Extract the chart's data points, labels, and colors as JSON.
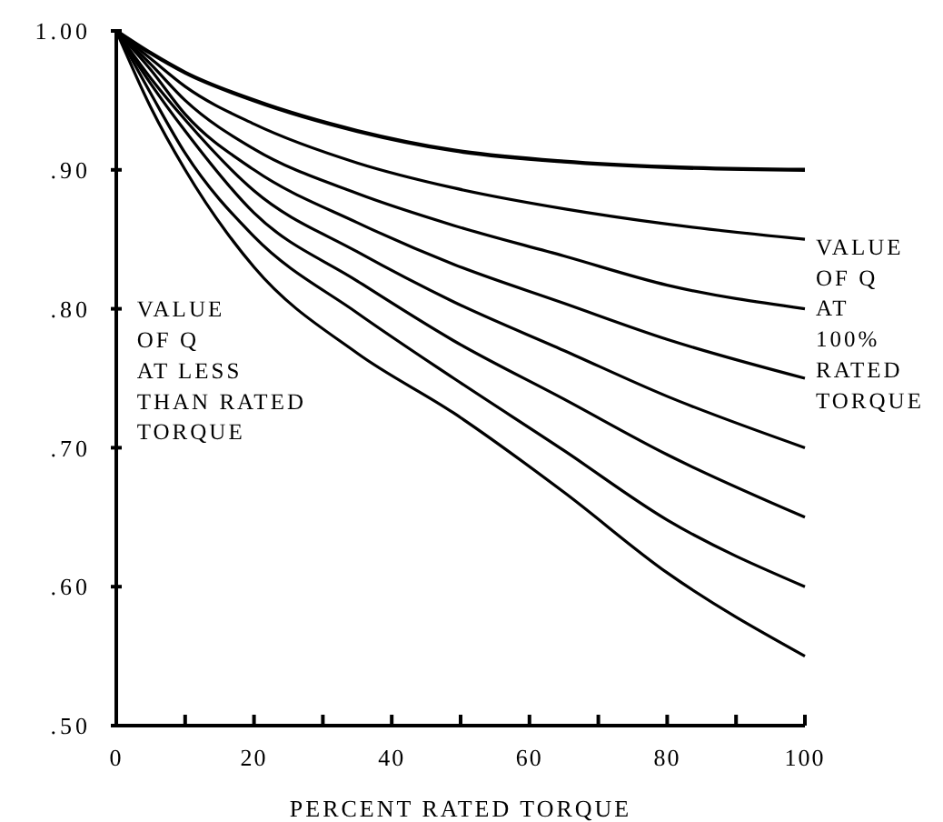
{
  "chart_data": {
    "type": "line",
    "xlabel": "PERCENT RATED TORQUE",
    "x": [
      0,
      5,
      10,
      20,
      35,
      49,
      65,
      80,
      100
    ],
    "series": [
      {
        "color": "#000000",
        "values": [
          1.0,
          0.984,
          0.97,
          0.95,
          0.928,
          0.914,
          0.906,
          0.902,
          0.9
        ]
      },
      {
        "color": "#000000",
        "values": [
          1.0,
          0.98,
          0.96,
          0.933,
          0.905,
          0.887,
          0.872,
          0.861,
          0.85
        ]
      },
      {
        "color": "#000000",
        "values": [
          1.0,
          0.976,
          0.95,
          0.915,
          0.883,
          0.86,
          0.838,
          0.817,
          0.8
        ]
      },
      {
        "color": "#000000",
        "values": [
          1.0,
          0.972,
          0.94,
          0.9,
          0.862,
          0.832,
          0.804,
          0.778,
          0.75
        ]
      },
      {
        "color": "#000000",
        "values": [
          1.0,
          0.966,
          0.936,
          0.885,
          0.841,
          0.805,
          0.77,
          0.737,
          0.7
        ]
      },
      {
        "color": "#000000",
        "values": [
          1.0,
          0.962,
          0.928,
          0.869,
          0.82,
          0.777,
          0.735,
          0.695,
          0.65
        ]
      },
      {
        "color": "#000000",
        "values": [
          1.0,
          0.955,
          0.912,
          0.852,
          0.797,
          0.75,
          0.698,
          0.648,
          0.6
        ]
      },
      {
        "color": "#000000",
        "values": [
          1.0,
          0.945,
          0.9,
          0.83,
          0.768,
          0.725,
          0.668,
          0.61,
          0.55
        ]
      }
    ],
    "xlim": [
      0,
      100
    ],
    "xticks": [
      0,
      {
        "value": 10,
        "label": null
      },
      20,
      {
        "value": 30,
        "label": null
      },
      40,
      {
        "value": 50,
        "label": null
      },
      60,
      {
        "value": 70,
        "label": null
      },
      80,
      {
        "value": 90,
        "label": null
      },
      100
    ],
    "ylim": [
      0.5,
      1.0
    ],
    "yticks": [
      {
        "value": 0.5,
        "label": ".50"
      },
      {
        "value": 0.6,
        "label": ".60"
      },
      {
        "value": 0.7,
        "label": ".70"
      },
      {
        "value": 0.8,
        "label": ".80"
      },
      {
        "value": 0.9,
        "label": ".90"
      },
      {
        "value": 1.0,
        "label": "1.00"
      }
    ],
    "annotations": [
      "VALUE\nOF Q\nAT LESS\nTHAN RATED\nTORQUE",
      "VALUE\nOF Q\nAT\n100%\nRATED\nTORQUE"
    ],
    "marker": "none",
    "line_style": "solid"
  }
}
